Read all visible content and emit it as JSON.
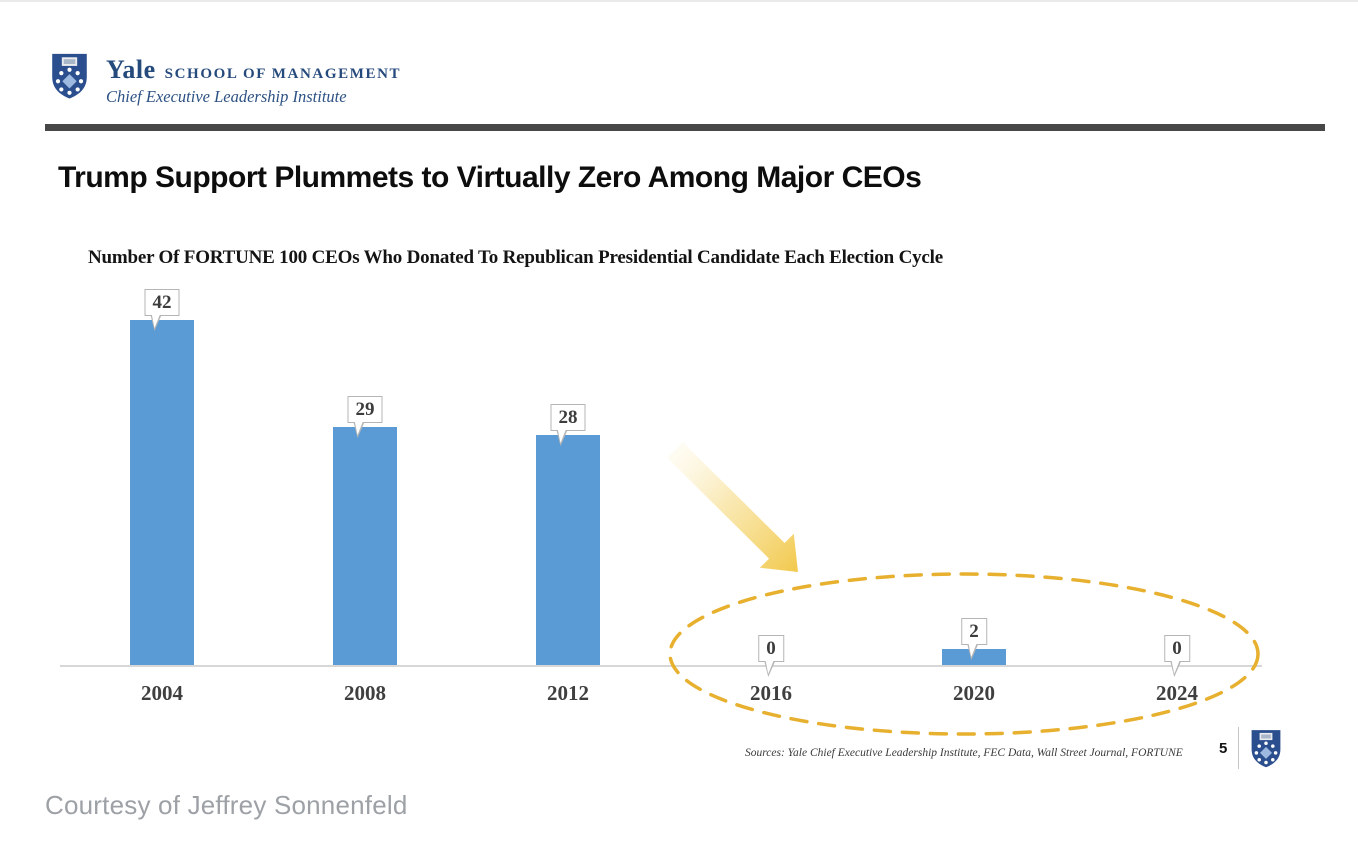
{
  "header": {
    "brand_primary": "Yale",
    "brand_secondary": "SCHOOL OF MANAGEMENT",
    "brand_subtitle": "Chief Executive Leadership Institute"
  },
  "slide": {
    "title": "Trump Support Plummets to Virtually Zero Among Major CEOs",
    "page_number": "5",
    "sources": "Sources: Yale Chief Executive Leadership Institute, FEC Data, Wall Street Journal, FORTUNE"
  },
  "chart_data": {
    "type": "bar",
    "title": "Number Of FORTUNE 100 CEOs Who Donated To Republican Presidential Candidate Each Election Cycle",
    "categories": [
      "2004",
      "2008",
      "2012",
      "2016",
      "2020",
      "2024"
    ],
    "values": [
      42,
      29,
      28,
      0,
      2,
      0
    ],
    "xlabel": "",
    "ylabel": "",
    "ylim": [
      0,
      42
    ],
    "grid": false,
    "legend": "none",
    "bar_color": "#5B9BD5",
    "data_label_style": "white callout boxes with gray border above each bar",
    "annotations": [
      {
        "type": "ellipse",
        "target": "2016-2024",
        "style": "yellow dashed ellipse highlight",
        "color": "#E7B02F"
      },
      {
        "type": "arrow",
        "direction": "down-right",
        "style": "yellow gradient block arrow pointing at highlighted years",
        "color": "#F2C94C"
      }
    ]
  },
  "footer": {
    "courtesy": "Courtesy of Jeffrey Sonnenfeld"
  }
}
